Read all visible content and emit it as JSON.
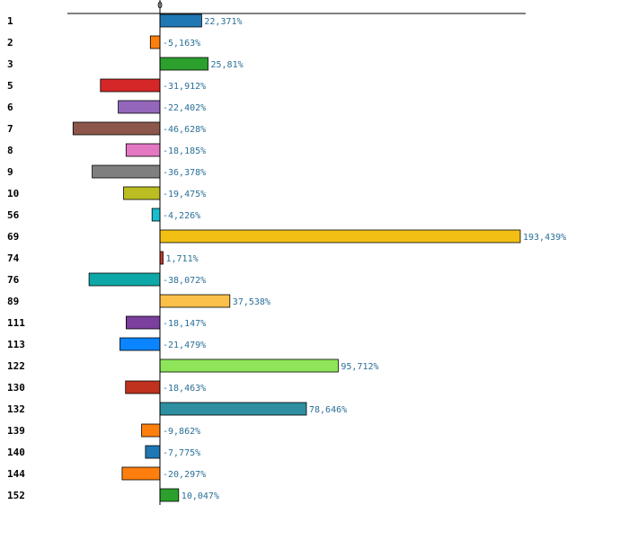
{
  "chart_data": {
    "type": "bar",
    "orientation": "horizontal",
    "title": "",
    "xlabel": "",
    "ylabel": "",
    "zero_tick_label": "0",
    "categories": [
      "1",
      "2",
      "3",
      "5",
      "6",
      "7",
      "8",
      "9",
      "10",
      "56",
      "69",
      "74",
      "76",
      "89",
      "111",
      "113",
      "122",
      "130",
      "132",
      "139",
      "140",
      "144",
      "152"
    ],
    "values": [
      22.371,
      -5.163,
      25.81,
      -31.912,
      -22.402,
      -46.628,
      -18.185,
      -36.378,
      -19.475,
      -4.226,
      193.439,
      1.711,
      -38.072,
      37.538,
      -18.147,
      -21.479,
      95.712,
      -18.463,
      78.646,
      -9.862,
      -7.775,
      -20.297,
      10.047
    ],
    "value_labels": [
      "22,371%",
      "-5,163%",
      "25,81%",
      "-31,912%",
      "-22,402%",
      "-46,628%",
      "-18,185%",
      "-36,378%",
      "-19,475%",
      "-4,226%",
      "193,439%",
      "1,711%",
      "-38,072%",
      "37,538%",
      "-18,147%",
      "-21,479%",
      "95,712%",
      "-18,463%",
      "78,646%",
      "-9,862%",
      "-7,775%",
      "-20,297%",
      "10,047%"
    ],
    "colors": [
      "#1f77b4",
      "#ff7f0e",
      "#2ca02c",
      "#d62728",
      "#9467bd",
      "#8c564b",
      "#e377c2",
      "#7f7f7f",
      "#bcbd22",
      "#17becf",
      "#f2c014",
      "#c0392b",
      "#0fa8a8",
      "#fbc04a",
      "#7b3f9e",
      "#0b84ff",
      "#8ee55a",
      "#c0321e",
      "#2d8fa0",
      "#ff7f0e",
      "#1f77b4",
      "#ff7f0e",
      "#2ca02c"
    ],
    "xlim": [
      -48,
      196
    ],
    "grid": false,
    "legend": "none"
  }
}
